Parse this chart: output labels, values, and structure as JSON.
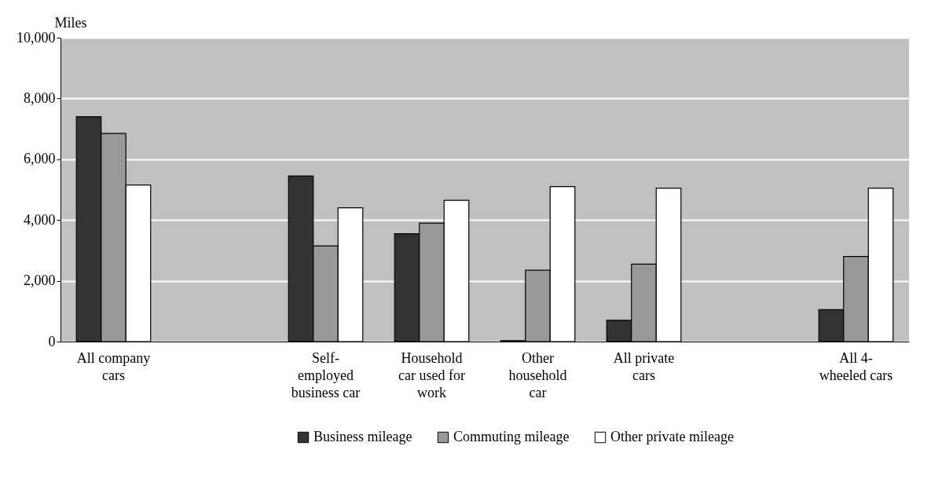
{
  "chart_data": {
    "type": "bar",
    "ylabel": "Miles",
    "categories": [
      "All company cars",
      null,
      "Self-employed business car",
      "Household car used for work",
      "Other household car",
      "All private cars",
      null,
      "All 4-wheeled cars"
    ],
    "series": [
      {
        "name": "Business mileage",
        "color": "#333333",
        "values": [
          7400,
          null,
          5450,
          3550,
          30,
          700,
          null,
          1050
        ]
      },
      {
        "name": "Commuting mileage",
        "color": "#999999",
        "values": [
          6850,
          null,
          3150,
          3900,
          2350,
          2550,
          null,
          2800
        ]
      },
      {
        "name": "Other private mileage",
        "color": "#ffffff",
        "values": [
          5150,
          null,
          4400,
          4650,
          5100,
          5050,
          null,
          5050
        ]
      }
    ],
    "ylim": [
      0,
      10000
    ],
    "yticks": [
      0,
      {
        "value": 2000,
        "label": "2,000"
      },
      {
        "value": 4000,
        "label": "4,000"
      },
      {
        "value": 6000,
        "label": "6,000"
      },
      {
        "value": 8000,
        "label": "8,000"
      },
      {
        "value": 10000,
        "label": "10,000"
      }
    ],
    "grid": "y",
    "legend": "bottom"
  }
}
